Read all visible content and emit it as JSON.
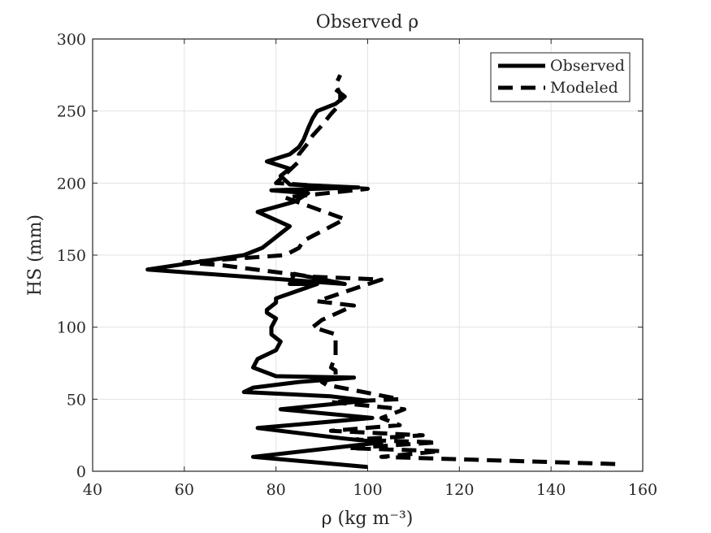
{
  "chart_data": {
    "type": "line",
    "title": "Observed ρ",
    "xlabel": "ρ (kg m⁻³)",
    "ylabel": "HS (mm)",
    "xlim": [
      40,
      160
    ],
    "ylim": [
      0,
      300
    ],
    "xticks": [
      "40",
      "60",
      "80",
      "100",
      "120",
      "140",
      "160"
    ],
    "yticks": [
      "0",
      "50",
      "100",
      "150",
      "200",
      "250",
      "300"
    ],
    "grid": true,
    "legend_position": "top-right",
    "series": [
      {
        "name": "Observed",
        "line_style": "solid",
        "color": "#000000",
        "x": [
          100,
          75,
          103,
          94,
          76,
          101,
          81,
          100,
          92,
          73,
          75,
          85,
          97,
          80,
          75,
          76,
          80,
          81,
          79,
          79,
          80,
          78,
          78,
          80,
          80,
          89,
          83,
          84,
          95,
          52,
          73,
          77,
          79,
          81,
          83,
          76,
          84,
          87,
          79,
          98,
          83,
          81,
          83,
          78,
          83,
          85,
          86,
          87,
          88,
          89,
          93,
          95,
          93
        ],
        "y": [
          3,
          10,
          20,
          23,
          30,
          37,
          43,
          49,
          52,
          55,
          58,
          62,
          65,
          66,
          72,
          78,
          84,
          90,
          95,
          100,
          106,
          110,
          112,
          117,
          120,
          130,
          130,
          137,
          130,
          140,
          150,
          155,
          160,
          165,
          170,
          180,
          187,
          193,
          195,
          197,
          199,
          205,
          210,
          215,
          220,
          225,
          230,
          238,
          245,
          250,
          255,
          260,
          265
        ]
      },
      {
        "name": "Modeled",
        "line_style": "dashed",
        "color": "#000000",
        "x": [
          154,
          123,
          103,
          116,
          96,
          115,
          97,
          112,
          92,
          107,
          103,
          108,
          92,
          107,
          91,
          90,
          93,
          93,
          92,
          93,
          93,
          88,
          90,
          97,
          89,
          103,
          88,
          68,
          60,
          82,
          85,
          86,
          95,
          82,
          100,
          80,
          85,
          85,
          87,
          88,
          90,
          92,
          94,
          94,
          93,
          94
        ],
        "y": [
          5,
          8,
          10,
          14,
          16,
          20,
          22,
          25,
          28,
          32,
          37,
          43,
          48,
          50,
          60,
          62,
          65,
          70,
          72,
          80,
          95,
          100,
          105,
          115,
          118,
          133,
          135,
          143,
          145,
          150,
          155,
          160,
          175,
          190,
          196,
          200,
          215,
          220,
          228,
          233,
          240,
          248,
          255,
          262,
          268,
          275
        ]
      }
    ]
  }
}
